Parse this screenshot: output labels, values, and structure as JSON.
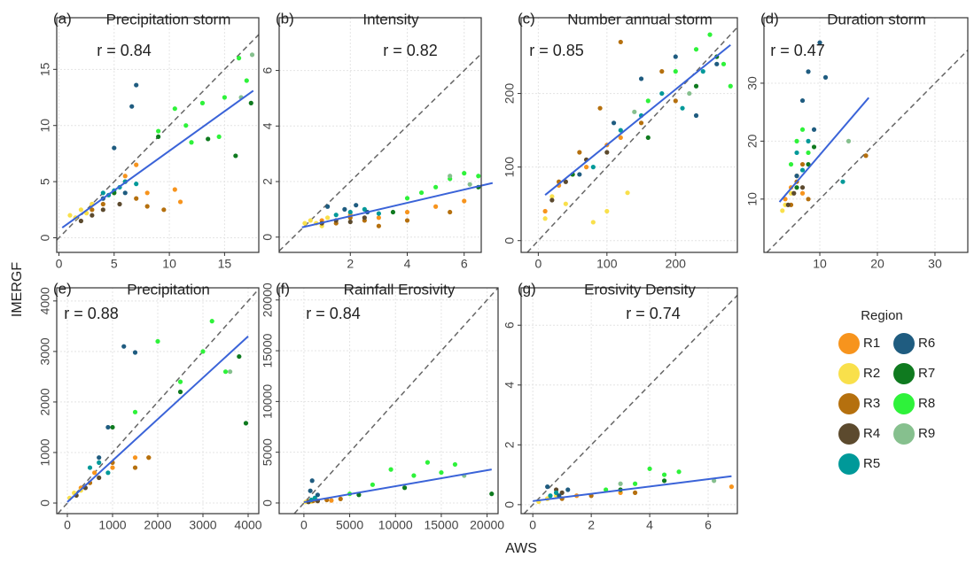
{
  "ylabel": "IMERGF",
  "xlabel": "AWS",
  "legend": {
    "title": "Region",
    "series": [
      {
        "name": "R1",
        "color": "#f7941d"
      },
      {
        "name": "R2",
        "color": "#f9e04b"
      },
      {
        "name": "R3",
        "color": "#b5700e"
      },
      {
        "name": "R4",
        "color": "#5c4a2e"
      },
      {
        "name": "R5",
        "color": "#009999"
      },
      {
        "name": "R6",
        "color": "#1f5c80"
      },
      {
        "name": "R7",
        "color": "#0f7a1f"
      },
      {
        "name": "R8",
        "color": "#2ef23a"
      },
      {
        "name": "R9",
        "color": "#86c08e"
      }
    ]
  },
  "chart_data": [
    {
      "type": "scatter",
      "tag": "(a)",
      "title": "Precipitation storm",
      "annotation": "r = 0.84",
      "grid": true,
      "xlim": [
        -0.2,
        18.1
      ],
      "ylim": [
        -1.3,
        19.6
      ],
      "xticks": [
        0,
        5,
        10,
        15
      ],
      "yticks": [
        0,
        5,
        10,
        15
      ],
      "fit": {
        "x": [
          0.3,
          17.6
        ],
        "y": [
          0.9,
          13.1
        ]
      },
      "series": [
        {
          "x": [
            3,
            5,
            6,
            7,
            8,
            10.5,
            11
          ],
          "values": [
            3,
            4,
            5.5,
            6.5,
            4,
            4.3,
            3.2
          ]
        },
        {
          "x": [
            1,
            1.5,
            2,
            2.5,
            3
          ],
          "values": [
            2,
            1.8,
            2.5,
            2.2,
            3
          ]
        },
        {
          "x": [
            3,
            4,
            6,
            7,
            8,
            9.5
          ],
          "values": [
            2.5,
            3,
            5,
            3.5,
            2.8,
            2.5
          ]
        },
        {
          "x": [
            2,
            3,
            4,
            5.5
          ],
          "values": [
            1.5,
            2,
            2.5,
            3
          ]
        },
        {
          "x": [
            4,
            4.5,
            5,
            5.5,
            6,
            7
          ],
          "values": [
            4,
            3.8,
            4.2,
            4.5,
            5,
            4.8
          ]
        },
        {
          "x": [
            4,
            5,
            6,
            6.6,
            7
          ],
          "values": [
            3.5,
            8,
            4,
            11.7,
            13.6
          ]
        },
        {
          "x": [
            5,
            9,
            13.5,
            16,
            17.4
          ],
          "values": [
            4,
            9,
            8.8,
            7.3,
            12
          ]
        },
        {
          "x": [
            9,
            10.5,
            11.5,
            12,
            13,
            14.5,
            15,
            16.3,
            17
          ],
          "values": [
            9.5,
            11.5,
            10,
            8.5,
            12,
            9,
            12.5,
            16,
            14
          ]
        },
        {
          "x": [
            16.5,
            17.5
          ],
          "values": [
            12.5,
            16.3
          ]
        }
      ]
    },
    {
      "type": "scatter",
      "tag": "(b)",
      "title": "Intensity",
      "annotation": "r = 0.82",
      "grid": true,
      "xlim": [
        -0.5,
        6.6
      ],
      "ylim": [
        -0.55,
        7.9
      ],
      "xticks": [
        2,
        4,
        6
      ],
      "yticks": [
        0,
        2,
        4,
        6
      ],
      "fit": {
        "x": [
          0.3,
          7
        ],
        "y": [
          0.35,
          1.95
        ]
      },
      "series": [
        {
          "x": [
            1,
            2,
            3,
            4,
            5,
            6
          ],
          "values": [
            0.6,
            0.8,
            0.7,
            0.9,
            1.1,
            1.3
          ]
        },
        {
          "x": [
            0.4,
            0.6,
            0.8,
            1,
            1.2
          ],
          "values": [
            0.5,
            0.6,
            0.5,
            0.4,
            0.7
          ]
        },
        {
          "x": [
            1.5,
            2,
            2.5,
            3,
            4,
            5.5
          ],
          "values": [
            0.5,
            0.7,
            0.6,
            0.4,
            0.6,
            0.9
          ]
        },
        {
          "x": [
            1,
            1.5,
            2,
            2.5
          ],
          "values": [
            0.5,
            0.6,
            0.55,
            0.7
          ]
        },
        {
          "x": [
            1.5,
            2,
            2.5,
            3
          ],
          "values": [
            0.8,
            0.9,
            1,
            0.85
          ]
        },
        {
          "x": [
            1.2,
            1.8,
            2.2,
            2.6
          ],
          "values": [
            1.1,
            1,
            1.15,
            0.9
          ]
        },
        {
          "x": [
            3.5,
            6.5,
            7
          ],
          "values": [
            0.9,
            1.8,
            1.4
          ]
        },
        {
          "x": [
            4,
            4.5,
            5,
            5.5,
            6,
            6.5,
            7
          ],
          "values": [
            1.4,
            1.6,
            1.8,
            2.1,
            2.3,
            2.2,
            2.4
          ]
        },
        {
          "x": [
            5.5,
            6.2
          ],
          "values": [
            2.2,
            1.9
          ]
        }
      ]
    },
    {
      "type": "scatter",
      "tag": "(c)",
      "title": "Number annual storm",
      "annotation": "r = 0.85",
      "grid": true,
      "xlim": [
        -25,
        290
      ],
      "ylim": [
        -16,
        303
      ],
      "xticks": [
        0,
        100,
        200
      ],
      "yticks": [
        0,
        100,
        200
      ],
      "fit": {
        "x": [
          10,
          280
        ],
        "y": [
          62,
          266
        ]
      },
      "series": [
        {
          "x": [
            10,
            30,
            50,
            70,
            100,
            120
          ],
          "values": [
            40,
            75,
            90,
            100,
            130,
            140
          ]
        },
        {
          "x": [
            10,
            20,
            40,
            80,
            100,
            130
          ],
          "values": [
            30,
            60,
            50,
            25,
            40,
            65
          ]
        },
        {
          "x": [
            30,
            60,
            90,
            120,
            150,
            180,
            200
          ],
          "values": [
            80,
            120,
            180,
            270,
            160,
            230,
            190
          ]
        },
        {
          "x": [
            20,
            40,
            70,
            100
          ],
          "values": [
            55,
            80,
            110,
            120
          ]
        },
        {
          "x": [
            80,
            120,
            150,
            180,
            210,
            240
          ],
          "values": [
            100,
            150,
            170,
            200,
            180,
            230
          ]
        },
        {
          "x": [
            60,
            110,
            150,
            200,
            230,
            260
          ],
          "values": [
            90,
            160,
            220,
            250,
            170,
            240
          ]
        },
        {
          "x": [
            50,
            160,
            230,
            260
          ],
          "values": [
            90,
            140,
            210,
            250
          ]
        },
        {
          "x": [
            160,
            200,
            230,
            250,
            270,
            280
          ],
          "values": [
            190,
            230,
            260,
            280,
            240,
            210
          ]
        },
        {
          "x": [
            140,
            220
          ],
          "values": [
            175,
            200
          ]
        }
      ]
    },
    {
      "type": "scatter",
      "tag": "(d)",
      "title": "Duration storm",
      "annotation": "r = 0.47",
      "grid": true,
      "xlim": [
        0.3,
        35.7
      ],
      "ylim": [
        0.8,
        41.3
      ],
      "xticks": [
        10,
        20,
        30
      ],
      "yticks": [
        10,
        20,
        30
      ],
      "fit": {
        "x": [
          3,
          18.5
        ],
        "y": [
          9.5,
          27.5
        ]
      },
      "series": [
        {
          "x": [
            4,
            5,
            6,
            7
          ],
          "values": [
            10,
            12,
            14,
            11
          ]
        },
        {
          "x": [
            3.5,
            4,
            5
          ],
          "values": [
            8,
            9,
            11
          ]
        },
        {
          "x": [
            5,
            6,
            7,
            8,
            18
          ],
          "values": [
            9,
            13,
            16,
            10,
            17.5
          ]
        },
        {
          "x": [
            4.5,
            5.5,
            7
          ],
          "values": [
            9,
            11,
            12
          ]
        },
        {
          "x": [
            6,
            7,
            8,
            14
          ],
          "values": [
            18,
            15,
            20,
            13
          ]
        },
        {
          "x": [
            6,
            7,
            8,
            9,
            10,
            11
          ],
          "values": [
            14,
            27,
            32,
            22,
            37,
            31
          ]
        },
        {
          "x": [
            6,
            8,
            9
          ],
          "values": [
            12,
            16,
            19
          ]
        },
        {
          "x": [
            5,
            6,
            7,
            8
          ],
          "values": [
            16,
            20,
            22,
            18
          ]
        },
        {
          "x": [
            15
          ],
          "values": [
            20
          ]
        }
      ]
    },
    {
      "type": "scatter",
      "tag": "(e)",
      "title": "Precipitation",
      "annotation": "r = 0.88",
      "grid": true,
      "xlim": [
        -235,
        4235
      ],
      "ylim": [
        -210,
        4260
      ],
      "xticks": [
        0,
        1000,
        2000,
        3000,
        4000
      ],
      "yticks": [
        0,
        1000,
        2000,
        3000,
        4000
      ],
      "fit": {
        "x": [
          0,
          4000
        ],
        "y": [
          20,
          3300
        ]
      },
      "series": [
        {
          "x": [
            300,
            600,
            1000,
            1500,
            1800
          ],
          "values": [
            300,
            600,
            700,
            900,
            900
          ]
        },
        {
          "x": [
            50,
            150,
            300,
            500
          ],
          "values": [
            100,
            200,
            250,
            400
          ]
        },
        {
          "x": [
            500,
            1000,
            1500,
            1800
          ],
          "values": [
            400,
            800,
            700,
            900
          ]
        },
        {
          "x": [
            200,
            400,
            700
          ],
          "values": [
            150,
            300,
            500
          ]
        },
        {
          "x": [
            500,
            700,
            900
          ],
          "values": [
            700,
            800,
            600
          ]
        },
        {
          "x": [
            700,
            900,
            1250,
            1500
          ],
          "values": [
            900,
            1500,
            3100,
            2980
          ]
        },
        {
          "x": [
            1000,
            2500,
            3800,
            3950
          ],
          "values": [
            1500,
            2200,
            2900,
            1580
          ]
        },
        {
          "x": [
            1500,
            2000,
            2500,
            3000,
            3200,
            3500
          ],
          "values": [
            1800,
            3200,
            2400,
            3000,
            3600,
            2600
          ]
        },
        {
          "x": [
            3600
          ],
          "values": [
            2600
          ]
        }
      ]
    },
    {
      "type": "scatter",
      "tag": "(f)",
      "title": "Rainfall Erosivity",
      "annotation": "r = 0.84",
      "grid": true,
      "xlim": [
        -2700,
        21200
      ],
      "ylim": [
        -1050,
        21200
      ],
      "xticks": [
        0,
        5000,
        10000,
        15000,
        20000
      ],
      "yticks": [
        0,
        5000,
        10000,
        15000,
        20000
      ],
      "fit": {
        "x": [
          0,
          20500
        ],
        "y": [
          80,
          3300
        ]
      },
      "series": [
        {
          "x": [
            500,
            1500,
            3000
          ],
          "values": [
            150,
            200,
            250
          ]
        },
        {
          "x": [
            200,
            800,
            1500
          ],
          "values": [
            100,
            150,
            200
          ]
        },
        {
          "x": [
            1000,
            2500,
            4000
          ],
          "values": [
            200,
            300,
            400
          ]
        },
        {
          "x": [
            500,
            1500
          ],
          "values": [
            100,
            200
          ]
        },
        {
          "x": [
            800,
            1200
          ],
          "values": [
            300,
            500
          ]
        },
        {
          "x": [
            700,
            900,
            1500
          ],
          "values": [
            1200,
            2200,
            800
          ]
        },
        {
          "x": [
            6000,
            11000,
            20500
          ],
          "values": [
            800,
            1500,
            900
          ]
        },
        {
          "x": [
            5000,
            7500,
            9500,
            12000,
            13500,
            15000,
            16500
          ],
          "values": [
            900,
            1800,
            3300,
            2700,
            4000,
            3000,
            3800
          ]
        },
        {
          "x": [
            17500
          ],
          "values": [
            2700
          ]
        }
      ]
    },
    {
      "type": "scatter",
      "tag": "(g)",
      "title": "Erosivity Density",
      "annotation": "r = 0.74",
      "grid": true,
      "xlim": [
        -0.4,
        7.0
      ],
      "ylim": [
        -0.3,
        7.25
      ],
      "xticks": [
        0,
        2,
        4,
        6
      ],
      "yticks": [
        0,
        2,
        4,
        6
      ],
      "fit": {
        "x": [
          0,
          6.8
        ],
        "y": [
          0.12,
          0.95
        ]
      },
      "series": [
        {
          "x": [
            0.5,
            1.5,
            3,
            6.8
          ],
          "values": [
            0.2,
            0.3,
            0.4,
            0.6
          ]
        },
        {
          "x": [
            0.2,
            0.5,
            0.8
          ],
          "values": [
            0.1,
            0.2,
            0.3
          ]
        },
        {
          "x": [
            1,
            2,
            3.5
          ],
          "values": [
            0.2,
            0.3,
            0.4
          ]
        },
        {
          "x": [
            0.8,
            1
          ],
          "values": [
            0.5,
            0.4
          ]
        },
        {
          "x": [
            0.6,
            0.8
          ],
          "values": [
            0.3,
            0.4
          ]
        },
        {
          "x": [
            0.5,
            0.9,
            1.2
          ],
          "values": [
            0.6,
            0.3,
            0.5
          ]
        },
        {
          "x": [
            3,
            4.5
          ],
          "values": [
            0.5,
            0.8
          ]
        },
        {
          "x": [
            2.5,
            3.5,
            4,
            4.5,
            5
          ],
          "values": [
            0.5,
            0.7,
            1.2,
            1,
            1.1
          ]
        },
        {
          "x": [
            3,
            6.2
          ],
          "values": [
            0.7,
            0.8
          ]
        }
      ]
    }
  ]
}
